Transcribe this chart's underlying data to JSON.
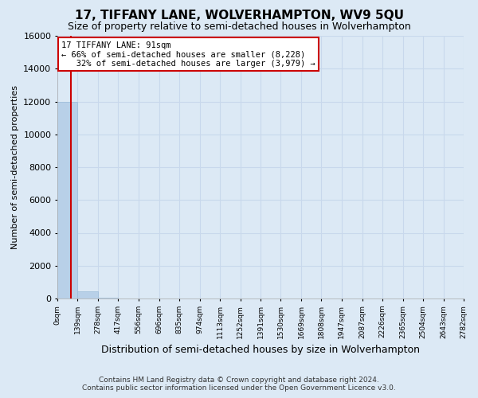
{
  "title": "17, TIFFANY LANE, WOLVERHAMPTON, WV9 5QU",
  "subtitle": "Size of property relative to semi-detached houses in Wolverhampton",
  "xlabel": "Distribution of semi-detached houses by size in Wolverhampton",
  "ylabel": "Number of semi-detached properties",
  "footnote1": "Contains HM Land Registry data © Crown copyright and database right 2024.",
  "footnote2": "Contains public sector information licensed under the Open Government Licence v3.0.",
  "bin_edges": [
    0,
    139,
    278,
    417,
    556,
    696,
    835,
    974,
    1113,
    1252,
    1391,
    1530,
    1669,
    1808,
    1947,
    2087,
    2226,
    2365,
    2504,
    2643,
    2782
  ],
  "bin_counts": [
    12000,
    420,
    30,
    10,
    5,
    3,
    2,
    2,
    2,
    1,
    1,
    1,
    1,
    0,
    0,
    0,
    0,
    0,
    0,
    0
  ],
  "bar_color": "#b8d0e8",
  "bar_edge_color": "#9bbbd8",
  "property_size": 91,
  "vline_color": "#cc0000",
  "annotation_line1": "17 TIFFANY LANE: 91sqm",
  "annotation_line2": "← 66% of semi-detached houses are smaller (8,228)",
  "annotation_line3": "   32% of semi-detached houses are larger (3,979) →",
  "annotation_box_color": "#ffffff",
  "annotation_border_color": "#cc0000",
  "ylim": [
    0,
    16000
  ],
  "yticks": [
    0,
    2000,
    4000,
    6000,
    8000,
    10000,
    12000,
    14000,
    16000
  ],
  "bg_color": "#dce9f5",
  "grid_color": "#c8d8ec",
  "title_fontsize": 11,
  "subtitle_fontsize": 9
}
